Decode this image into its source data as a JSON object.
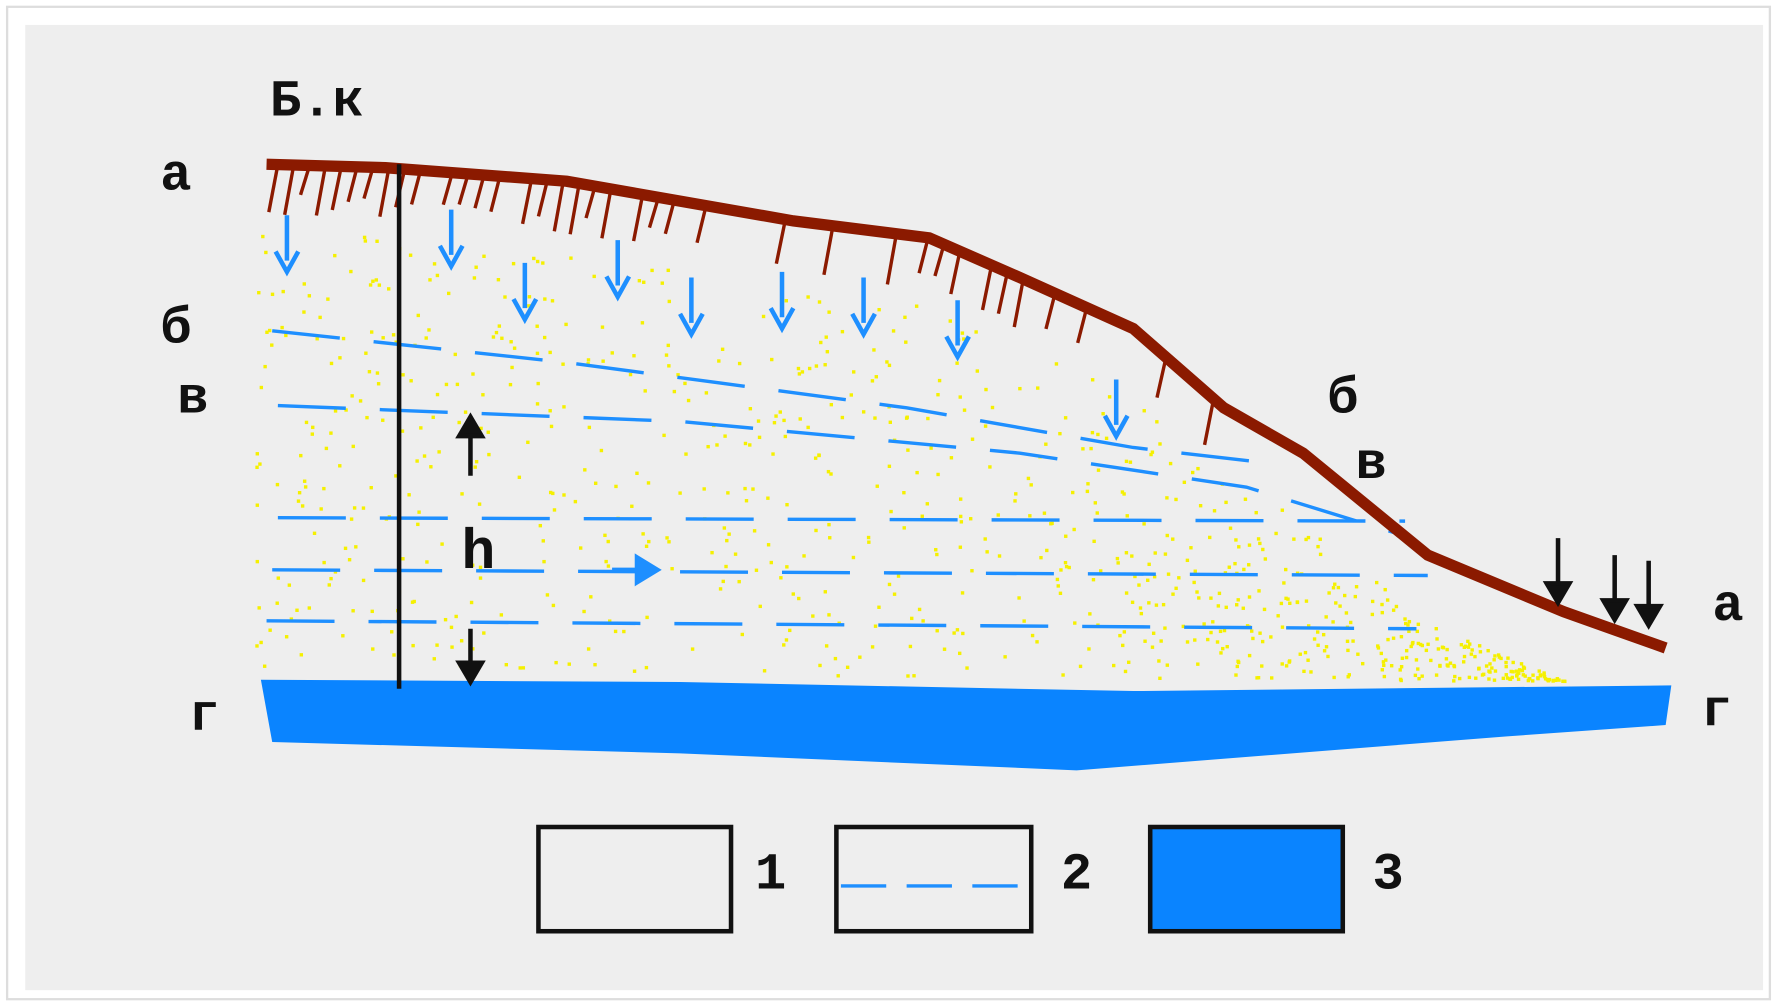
{
  "labels": {
    "top": "Б.к",
    "left": [
      "а",
      "б",
      "в",
      "г"
    ],
    "right": [
      "б",
      "в",
      "а",
      "г"
    ],
    "h": "h"
  },
  "legend": [
    "1",
    "2",
    "3"
  ]
}
